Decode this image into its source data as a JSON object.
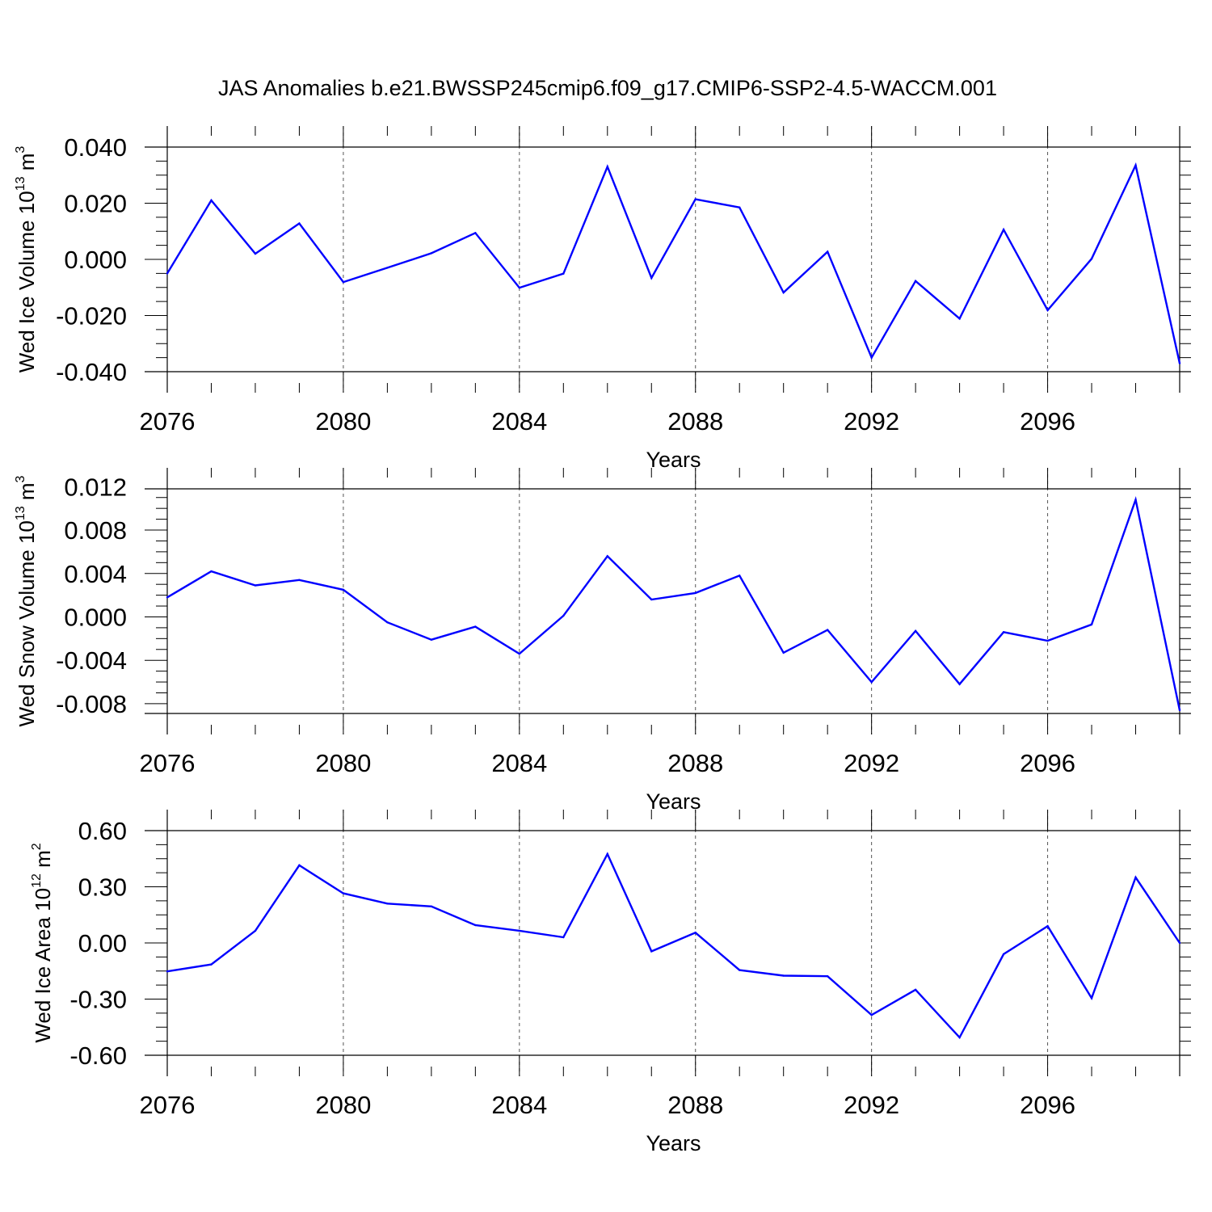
{
  "title": "JAS Anomalies b.e21.BWSSP245cmip6.f09_g17.CMIP6-SSP2-4.5-WACCM.001",
  "colors": {
    "line": "#0000ff",
    "axis": "#000000",
    "grid": "#555555"
  },
  "chart_data": [
    {
      "type": "line",
      "title": "JAS Anomalies b.e21.BWSSP245cmip6.f09_g17.CMIP6-SSP2-4.5-WACCM.001",
      "xlabel": "Years",
      "ylabel": {
        "base": "Wed Ice Volume 10",
        "exp": "13",
        "unit": " m",
        "unit_exp": "3"
      },
      "x": [
        2076,
        2077,
        2078,
        2079,
        2080,
        2081,
        2082,
        2083,
        2084,
        2085,
        2086,
        2087,
        2088,
        2089,
        2090,
        2091,
        2092,
        2093,
        2094,
        2095,
        2096,
        2097,
        2098,
        2099
      ],
      "values": [
        -0.005,
        0.021,
        0.002,
        0.0128,
        -0.0081,
        -0.003,
        0.0022,
        0.0094,
        -0.0101,
        -0.0051,
        0.033,
        -0.0066,
        0.0214,
        0.0185,
        -0.0118,
        0.0027,
        -0.035,
        -0.0077,
        -0.0211,
        0.0106,
        -0.0181,
        0.0002,
        0.0335,
        -0.037
      ],
      "xlim": [
        2076,
        2099
      ],
      "ylim": [
        -0.04,
        0.04
      ],
      "xticks": [
        2076,
        2080,
        2084,
        2088,
        2092,
        2096
      ],
      "xtick_labels": [
        "2076",
        "2080",
        "2084",
        "2088",
        "2092",
        "2096"
      ],
      "yticks": [
        0.04,
        0.02,
        0.0,
        -0.02,
        -0.04
      ],
      "ytick_labels": [
        "0.040",
        "0.020",
        "0.000",
        "-0.020",
        "-0.040"
      ],
      "yminor_step": 0.005,
      "ydata_min": -0.04
    },
    {
      "type": "line",
      "xlabel": "Years",
      "ylabel": {
        "base": "Wed Snow Volume 10",
        "exp": "13",
        "unit": " m",
        "unit_exp": "3"
      },
      "x": [
        2076,
        2077,
        2078,
        2079,
        2080,
        2081,
        2082,
        2083,
        2084,
        2085,
        2086,
        2087,
        2088,
        2089,
        2090,
        2091,
        2092,
        2093,
        2094,
        2095,
        2096,
        2097,
        2098,
        2099
      ],
      "values": [
        0.0018,
        0.0042,
        0.0029,
        0.0034,
        0.0025,
        -0.0005,
        -0.0021,
        -0.0009,
        -0.0034,
        0.0001,
        0.0056,
        0.0016,
        0.0022,
        0.0038,
        -0.0033,
        -0.0012,
        -0.006,
        -0.0013,
        -0.0062,
        -0.0014,
        -0.0022,
        -0.0007,
        0.0108,
        -0.0086
      ],
      "xlim": [
        2076,
        2099
      ],
      "ylim": [
        -0.0089,
        0.0118
      ],
      "xticks": [
        2076,
        2080,
        2084,
        2088,
        2092,
        2096
      ],
      "xtick_labels": [
        "2076",
        "2080",
        "2084",
        "2088",
        "2092",
        "2096"
      ],
      "yticks": [
        0.012,
        0.008,
        0.004,
        0.0,
        -0.004,
        -0.008
      ],
      "ytick_labels": [
        "0.012",
        "0.008",
        "0.004",
        "0.000",
        "-0.004",
        "-0.008"
      ],
      "yminor_step": 0.001,
      "ydata_min": -0.0089
    },
    {
      "type": "line",
      "xlabel": "Years",
      "ylabel": {
        "base": "Wed Ice Area 10",
        "exp": "12",
        "unit": " m",
        "unit_exp": "2"
      },
      "x": [
        2076,
        2077,
        2078,
        2079,
        2080,
        2081,
        2082,
        2083,
        2084,
        2085,
        2086,
        2087,
        2088,
        2089,
        2090,
        2091,
        2092,
        2093,
        2094,
        2095,
        2096,
        2097,
        2098,
        2099
      ],
      "values": [
        -0.152,
        -0.115,
        0.065,
        0.415,
        0.265,
        0.21,
        0.195,
        0.095,
        0.065,
        0.03,
        0.475,
        -0.045,
        0.055,
        -0.145,
        -0.175,
        -0.178,
        -0.385,
        -0.25,
        -0.505,
        -0.06,
        0.09,
        -0.295,
        0.35,
        0.0
      ],
      "xlim": [
        2076,
        2099
      ],
      "ylim": [
        -0.6,
        0.6
      ],
      "xticks": [
        2076,
        2080,
        2084,
        2088,
        2092,
        2096
      ],
      "xtick_labels": [
        "2076",
        "2080",
        "2084",
        "2088",
        "2092",
        "2096"
      ],
      "yticks": [
        0.6,
        0.3,
        0.0,
        -0.3,
        -0.6
      ],
      "ytick_labels": [
        "0.60",
        "0.30",
        "0.00",
        "-0.30",
        "-0.60"
      ],
      "yminor_step": 0.075,
      "ydata_min": -0.6
    }
  ]
}
